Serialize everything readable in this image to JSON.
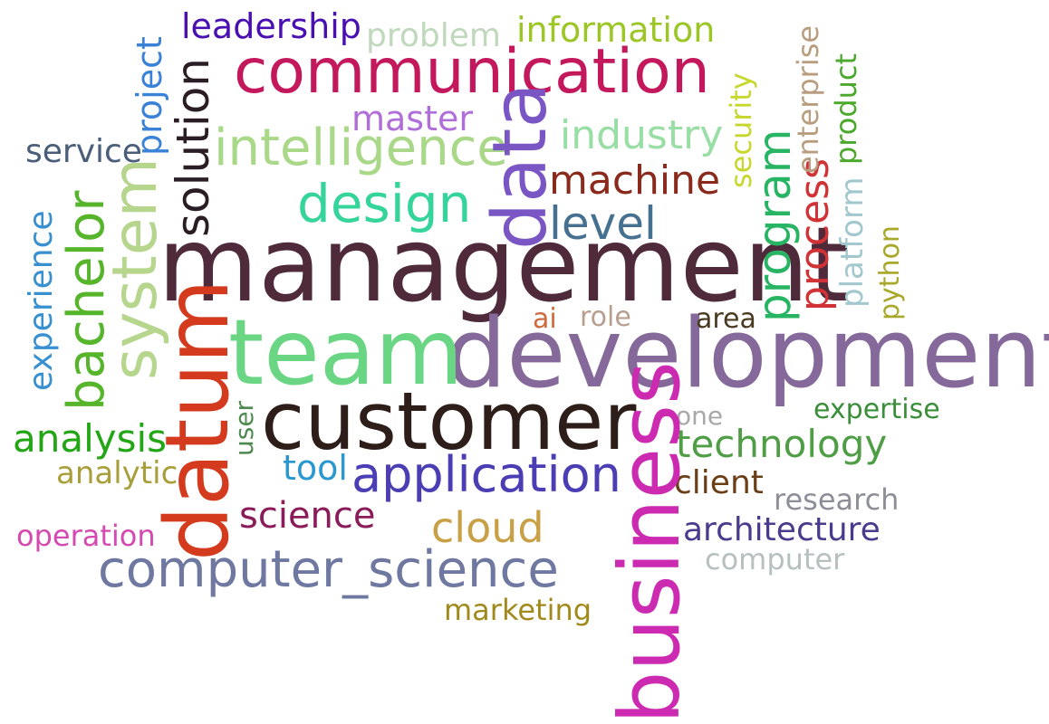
{
  "words": {
    "management": {
      "text": "management",
      "color": "#4f2a3a"
    },
    "development": {
      "text": "development",
      "color": "#85699a"
    },
    "team": {
      "text": "team",
      "color": "#6ad683"
    },
    "customer": {
      "text": "customer",
      "color": "#2d1e19"
    },
    "communication": {
      "text": "communication",
      "color": "#c4185c"
    },
    "datum": {
      "text": "datum",
      "color": "#d43a1d"
    },
    "business": {
      "text": "business",
      "color": "#cc2ab1"
    },
    "data": {
      "text": "data",
      "color": "#7a55c4"
    },
    "system": {
      "text": "system",
      "color": "#b5d68c"
    },
    "intelligence": {
      "text": "intelligence",
      "color": "#aad889"
    },
    "design": {
      "text": "design",
      "color": "#35d49b"
    },
    "application": {
      "text": "application",
      "color": "#4b3db3"
    },
    "computer_science": {
      "text": "computer_science",
      "color": "#6f78a0"
    },
    "bachelor": {
      "text": "bachelor",
      "color": "#57b52c"
    },
    "solution": {
      "text": "solution",
      "color": "#2a1e24"
    },
    "machine": {
      "text": "machine",
      "color": "#8a2a1c"
    },
    "level": {
      "text": "level",
      "color": "#46708f"
    },
    "industry": {
      "text": "industry",
      "color": "#98dea5"
    },
    "program": {
      "text": "program",
      "color": "#27b463"
    },
    "process": {
      "text": "process",
      "color": "#d13235"
    },
    "technology": {
      "text": "technology",
      "color": "#4f9e46"
    },
    "cloud": {
      "text": "cloud",
      "color": "#c8a045"
    },
    "science": {
      "text": "science",
      "color": "#8a1c5a"
    },
    "leadership": {
      "text": "leadership",
      "color": "#4a0fb0"
    },
    "information": {
      "text": "information",
      "color": "#9cc625"
    },
    "problem": {
      "text": "problem",
      "color": "#c0d8bc"
    },
    "master": {
      "text": "master",
      "color": "#b06fd8"
    },
    "service": {
      "text": "service",
      "color": "#4a5e7a"
    },
    "project": {
      "text": "project",
      "color": "#3a82d8"
    },
    "experience": {
      "text": "experience",
      "color": "#3890d0"
    },
    "analysis": {
      "text": "analysis",
      "color": "#22a616"
    },
    "analytic": {
      "text": "analytic",
      "color": "#a89e3a"
    },
    "operation": {
      "text": "operation",
      "color": "#d44ab0"
    },
    "tool": {
      "text": "tool",
      "color": "#2a98d0"
    },
    "user": {
      "text": "user",
      "color": "#4e8a50"
    },
    "security": {
      "text": "security",
      "color": "#c7d72e"
    },
    "enterprise": {
      "text": "enterprise",
      "color": "#b89e7e"
    },
    "product": {
      "text": "product",
      "color": "#4aa82a"
    },
    "platform": {
      "text": "platform",
      "color": "#a2c7cf"
    },
    "python": {
      "text": "python",
      "color": "#a8a82a"
    },
    "ai": {
      "text": "ai",
      "color": "#d06a3a"
    },
    "role": {
      "text": "role",
      "color": "#b89e8e"
    },
    "area": {
      "text": "area",
      "color": "#4a3a22"
    },
    "one": {
      "text": "one",
      "color": "#a8a8a8"
    },
    "expertise": {
      "text": "expertise",
      "color": "#3a8e3a"
    },
    "client": {
      "text": "client",
      "color": "#6a3f18"
    },
    "research": {
      "text": "research",
      "color": "#8e8e98"
    },
    "architecture": {
      "text": "architecture",
      "color": "#4b3b8e"
    },
    "computer": {
      "text": "computer",
      "color": "#b7bfbf"
    },
    "marketing": {
      "text": "marketing",
      "color": "#a08a1c"
    }
  }
}
